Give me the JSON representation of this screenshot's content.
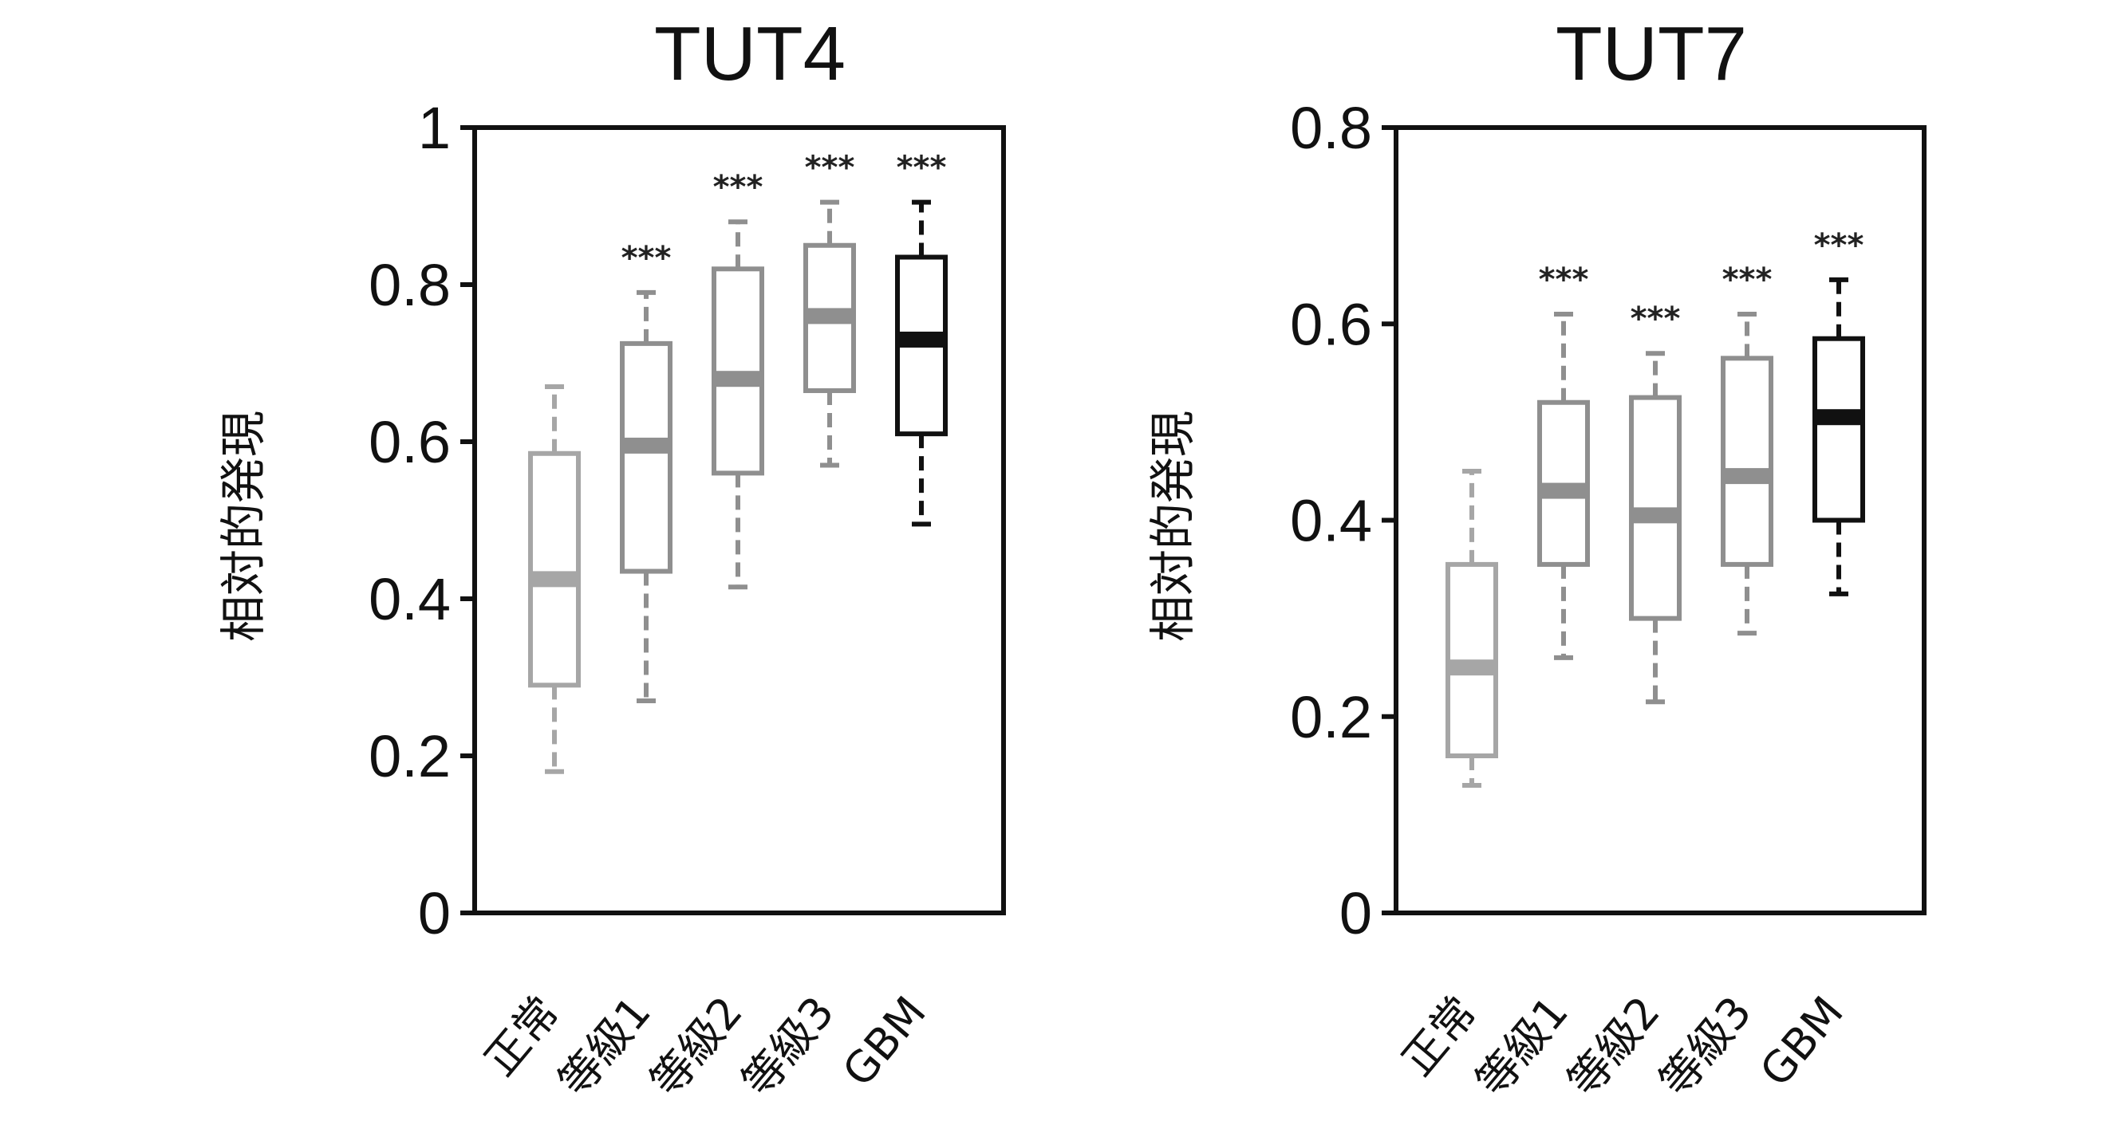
{
  "chart_data": [
    {
      "type": "boxplot",
      "title": "TUT4",
      "ylabel": "相対的発現",
      "ylim": [
        0,
        1
      ],
      "yticks": [
        "0",
        "0.2",
        "0.4",
        "0.6",
        "0.8",
        "1"
      ],
      "categories": [
        "正常",
        "等級1",
        "等級2",
        "等級3",
        "GBM"
      ],
      "colors": [
        "#a6a6a6",
        "#8f8f8f",
        "#8f8f8f",
        "#8f8f8f",
        "#111111"
      ],
      "boxes": [
        {
          "min": 0.18,
          "q1": 0.29,
          "median": 0.425,
          "q3": 0.585,
          "max": 0.67,
          "annotation": ""
        },
        {
          "min": 0.27,
          "q1": 0.435,
          "median": 0.595,
          "q3": 0.725,
          "max": 0.79,
          "annotation": "***"
        },
        {
          "min": 0.415,
          "q1": 0.56,
          "median": 0.68,
          "q3": 0.82,
          "max": 0.88,
          "annotation": "***"
        },
        {
          "min": 0.57,
          "q1": 0.665,
          "median": 0.76,
          "q3": 0.85,
          "max": 0.905,
          "annotation": "***"
        },
        {
          "min": 0.495,
          "q1": 0.61,
          "median": 0.73,
          "q3": 0.835,
          "max": 0.905,
          "annotation": "***"
        }
      ]
    },
    {
      "type": "boxplot",
      "title": "TUT7",
      "ylabel": "相対的発現",
      "ylim": [
        0,
        0.8
      ],
      "yticks": [
        "0",
        "0.2",
        "0.4",
        "0.6",
        "0.8"
      ],
      "categories": [
        "正常",
        "等級1",
        "等級2",
        "等級3",
        "GBM"
      ],
      "colors": [
        "#a6a6a6",
        "#8f8f8f",
        "#8f8f8f",
        "#8f8f8f",
        "#111111"
      ],
      "boxes": [
        {
          "min": 0.13,
          "q1": 0.16,
          "median": 0.25,
          "q3": 0.355,
          "max": 0.45,
          "annotation": ""
        },
        {
          "min": 0.26,
          "q1": 0.355,
          "median": 0.43,
          "q3": 0.52,
          "max": 0.61,
          "annotation": "***"
        },
        {
          "min": 0.215,
          "q1": 0.3,
          "median": 0.405,
          "q3": 0.525,
          "max": 0.57,
          "annotation": "***"
        },
        {
          "min": 0.285,
          "q1": 0.355,
          "median": 0.445,
          "q3": 0.565,
          "max": 0.61,
          "annotation": "***"
        },
        {
          "min": 0.325,
          "q1": 0.4,
          "median": 0.505,
          "q3": 0.585,
          "max": 0.645,
          "annotation": "***"
        }
      ]
    }
  ]
}
